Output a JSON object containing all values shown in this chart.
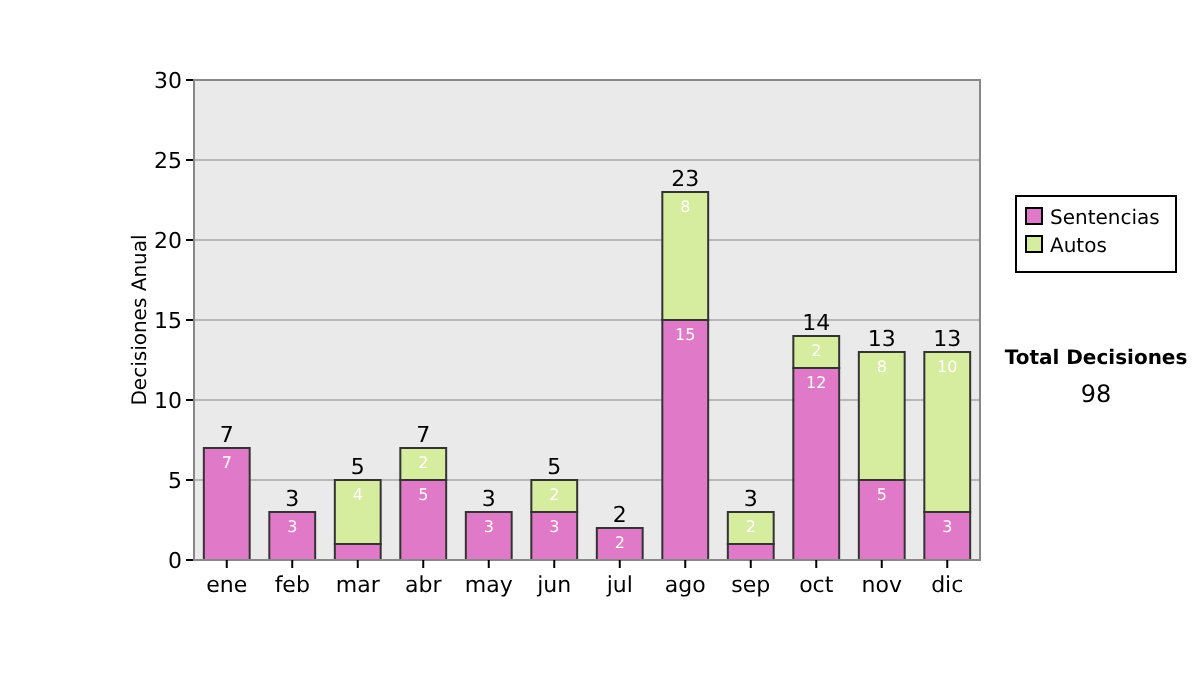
{
  "chart_data": {
    "type": "bar",
    "stacked": true,
    "ylabel": "Decisiones Anual",
    "categories": [
      "ene",
      "feb",
      "mar",
      "abr",
      "may",
      "jun",
      "jul",
      "ago",
      "sep",
      "oct",
      "nov",
      "dic"
    ],
    "series": [
      {
        "name": "Sentencias",
        "color": "#e07ac8",
        "values": [
          7,
          3,
          1,
          5,
          3,
          3,
          2,
          15,
          1,
          12,
          5,
          3
        ],
        "value_labels": [
          "7",
          "3",
          null,
          "5",
          "3",
          "3",
          "2",
          "15",
          null,
          "12",
          "5",
          "3"
        ]
      },
      {
        "name": "Autos",
        "color": "#d6ec9e",
        "values": [
          0,
          0,
          4,
          2,
          0,
          2,
          0,
          8,
          2,
          2,
          8,
          10
        ],
        "value_labels": [
          null,
          null,
          "4",
          "2",
          null,
          "2",
          null,
          "8",
          "2",
          "2",
          "8",
          "10"
        ]
      }
    ],
    "totals": [
      "7",
      "3",
      "5",
      "7",
      "3",
      "5",
      "2",
      "23",
      "3",
      "14",
      "13",
      "13"
    ],
    "ylim": [
      0,
      30
    ],
    "yticks": [
      0,
      5,
      10,
      15,
      20,
      25,
      30
    ],
    "grid": "y",
    "legend": "right",
    "annotations": [
      "Total Decisiones",
      "98"
    ]
  }
}
